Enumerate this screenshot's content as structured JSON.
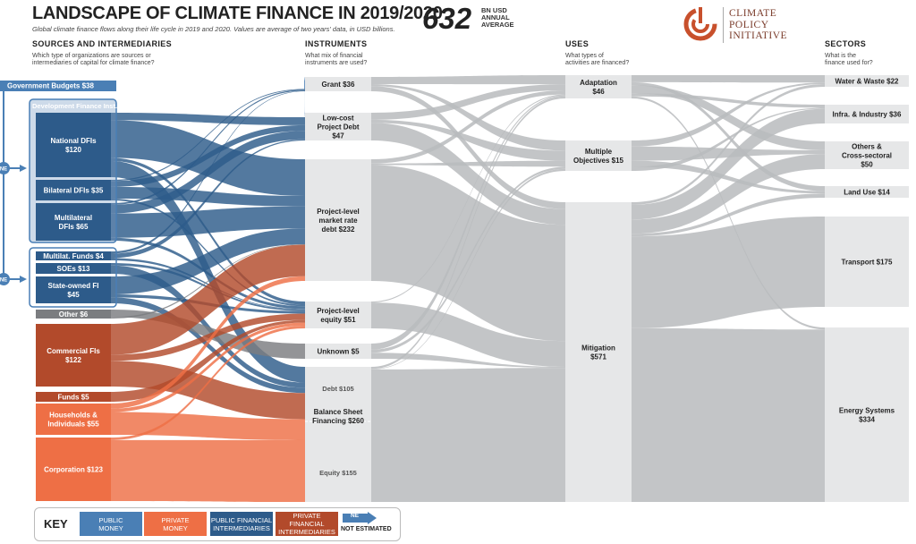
{
  "header": {
    "title": "LANDSCAPE OF CLIMATE FINANCE IN 2019/2020",
    "subtitle": "Global climate finance flows along their life cycle in 2019 and 2020. Values are average of two years' data, in USD billions.",
    "total_value": "632",
    "total_unit_lines": [
      "BN USD",
      "ANNUAL",
      "AVERAGE"
    ],
    "logo_text_lines": [
      "CLIMATE",
      "POLICY",
      "INITIATIVE"
    ]
  },
  "columns": [
    {
      "id": "sources",
      "title": "SOURCES AND INTERMEDIARIES",
      "question_lines": [
        "Which type of organizations are sources or",
        "intermediaries of capital for climate finance?"
      ]
    },
    {
      "id": "instruments",
      "title": "INSTRUMENTS",
      "question_lines": [
        "What mix of financial",
        "instruments are used?"
      ]
    },
    {
      "id": "uses",
      "title": "USES",
      "question_lines": [
        "What types of",
        "activities are financed?"
      ]
    },
    {
      "id": "sectors",
      "title": "SECTORS",
      "question_lines": [
        "What is the",
        "finance used for?"
      ]
    }
  ],
  "colors": {
    "public_money": "#4a7fb5",
    "private_money": "#ee6f45",
    "public_intermediary": "#2d5b8a",
    "private_intermediary": "#b24a2b",
    "neutral_flow": "#b9bbbd",
    "node_grey": "#e6e7e8",
    "other_grey": "#7b7d80"
  },
  "sources": [
    {
      "id": "gov",
      "label": "Government Budgets $38",
      "value": 38,
      "type": "public_money"
    },
    {
      "id": "dfi_group",
      "label": "Development Finance Inst.",
      "type": "group"
    },
    {
      "id": "natdfi",
      "label": "National DFIs $120",
      "value": 120,
      "type": "public_intermediary"
    },
    {
      "id": "bidfi",
      "label": "Bilateral DFIs $35",
      "value": 35,
      "type": "public_intermediary"
    },
    {
      "id": "multidfi",
      "label": "Multilateral DFIs $65",
      "value": 65,
      "type": "public_intermediary"
    },
    {
      "id": "multfunds",
      "label": "Multilat. Funds $4",
      "value": 4,
      "type": "public_intermediary"
    },
    {
      "id": "soe",
      "label": "SOEs $13",
      "value": 13,
      "type": "public_intermediary"
    },
    {
      "id": "sofi",
      "label": "State-owned FI $45",
      "value": 45,
      "type": "public_intermediary"
    },
    {
      "id": "other",
      "label": "Other $6",
      "value": 6,
      "type": "other"
    },
    {
      "id": "comfi",
      "label": "Commercial FIs $122",
      "value": 122,
      "type": "private_intermediary"
    },
    {
      "id": "funds",
      "label": "Funds $5",
      "value": 5,
      "type": "private_intermediary"
    },
    {
      "id": "hh",
      "label": "Households & Individuals $55",
      "value": 55,
      "type": "private_money"
    },
    {
      "id": "corp",
      "label": "Corporation $123",
      "value": 123,
      "type": "private_money"
    }
  ],
  "instruments": [
    {
      "id": "grant",
      "label": "Grant $36",
      "value": 36
    },
    {
      "id": "lowcost",
      "label": "Low-cost Project Debt $47",
      "value": 47
    },
    {
      "id": "pmrd",
      "label": "Project-level market rate debt $232",
      "value": 232
    },
    {
      "id": "pequity",
      "label": "Project-level equity $51",
      "value": 51
    },
    {
      "id": "unknown",
      "label": "Unknown $5",
      "value": 5
    },
    {
      "id": "bsf",
      "label": "Balance Sheet Financing $260",
      "value": 260,
      "parts": [
        {
          "label": "Debt $105",
          "value": 105
        },
        {
          "label": "Equity $155",
          "value": 155
        }
      ]
    }
  ],
  "uses": [
    {
      "id": "adapt",
      "label": "Adaptation $46",
      "value": 46
    },
    {
      "id": "multi",
      "label": "Multiple Objectives $15",
      "value": 15
    },
    {
      "id": "mitig",
      "label": "Mitigation $571",
      "value": 571
    }
  ],
  "sectors": [
    {
      "id": "water",
      "label": "Water & Waste $22",
      "value": 22
    },
    {
      "id": "infra",
      "label": "Infra. & Industry $36",
      "value": 36
    },
    {
      "id": "others",
      "label": "Others & Cross-sectoral $50",
      "value": 50
    },
    {
      "id": "land",
      "label": "Land Use $14",
      "value": 14
    },
    {
      "id": "transport",
      "label": "Transport $175",
      "value": 175
    },
    {
      "id": "energy",
      "label": "Energy Systems $334",
      "value": 334
    }
  ],
  "ne_label": "NE",
  "key": {
    "title": "KEY",
    "items": [
      {
        "label_lines": [
          "PUBLIC",
          "MONEY"
        ],
        "type": "public_money"
      },
      {
        "label_lines": [
          "PRIVATE",
          "MONEY"
        ],
        "type": "private_money"
      },
      {
        "label_lines": [
          "PUBLIC FINANCIAL",
          "INTERMEDIARIES"
        ],
        "type": "public_intermediary"
      },
      {
        "label_lines": [
          "PRIVATE FINANCIAL",
          "INTERMEDIARIES"
        ],
        "type": "private_intermediary"
      }
    ],
    "ne_badge": "NE",
    "ne_text": "NOT ESTIMATED"
  }
}
